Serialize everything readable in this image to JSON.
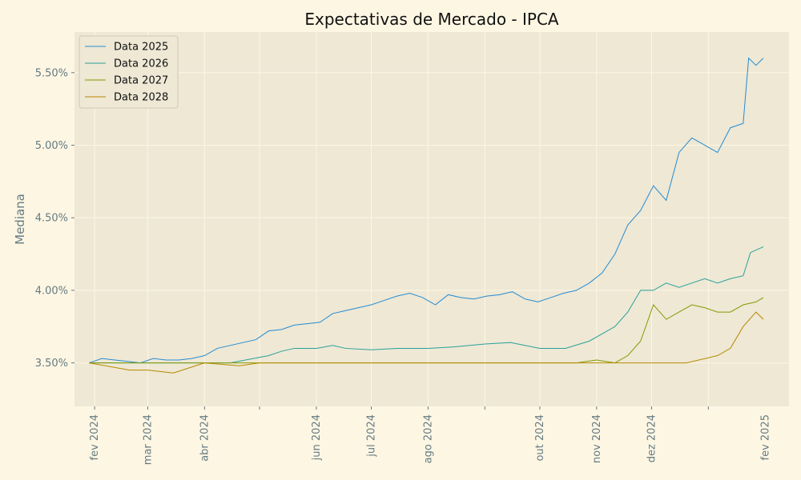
{
  "chart_data": {
    "type": "line",
    "title": "Expectativas de Mercado - IPCA",
    "xlabel": "",
    "ylabel": "Mediana",
    "xlim": [
      "2024-01-21",
      "2025-02-14"
    ],
    "ylim": [
      3.2,
      5.78
    ],
    "x_ticks": [
      "2024-02-01",
      "2024-03-01",
      "2024-04-01",
      "2024-05-01",
      "2024-06-01",
      "2024-07-01",
      "2024-08-01",
      "2024-09-01",
      "2024-10-01",
      "2024-11-01",
      "2024-12-01",
      "2025-01-01"
    ],
    "x_tick_labels": [
      "fev 2024",
      "mar 2024",
      "abr 2024",
      "jun 2024",
      "jul 2024",
      "ago 2024",
      "out 2024",
      "nov 2024",
      "dez 2024",
      "fev 2025"
    ],
    "x_tick_label_dates": [
      "2024-02-01",
      "2024-03-01",
      "2024-04-01",
      "2024-06-01",
      "2024-07-01",
      "2024-08-01",
      "2024-10-01",
      "2024-11-01",
      "2024-12-01",
      "2025-02-01"
    ],
    "y_ticks": [
      3.5,
      4.0,
      4.5,
      5.0,
      5.5
    ],
    "y_tick_labels": [
      "3.50%",
      "4.00%",
      "4.50%",
      "5.00%",
      "5.50%"
    ],
    "grid": true,
    "legend_position": "top-left",
    "colors": {
      "figure_bg": "#fdf6e3",
      "axes_bg": "#eee8d5",
      "grid": "#fdf6e3"
    },
    "series": [
      {
        "name": "Data 2025",
        "color": "#268bd2",
        "points": [
          [
            "2024-01-29",
            3.5
          ],
          [
            "2024-02-05",
            3.53
          ],
          [
            "2024-02-12",
            3.52
          ],
          [
            "2024-02-19",
            3.51
          ],
          [
            "2024-02-26",
            3.5
          ],
          [
            "2024-03-04",
            3.53
          ],
          [
            "2024-03-11",
            3.52
          ],
          [
            "2024-03-18",
            3.52
          ],
          [
            "2024-03-25",
            3.53
          ],
          [
            "2024-04-01",
            3.55
          ],
          [
            "2024-04-08",
            3.6
          ],
          [
            "2024-04-15",
            3.62
          ],
          [
            "2024-04-22",
            3.64
          ],
          [
            "2024-04-29",
            3.66
          ],
          [
            "2024-05-06",
            3.72
          ],
          [
            "2024-05-13",
            3.73
          ],
          [
            "2024-05-20",
            3.76
          ],
          [
            "2024-05-27",
            3.77
          ],
          [
            "2024-06-03",
            3.78
          ],
          [
            "2024-06-10",
            3.84
          ],
          [
            "2024-06-17",
            3.86
          ],
          [
            "2024-06-24",
            3.88
          ],
          [
            "2024-07-01",
            3.9
          ],
          [
            "2024-07-08",
            3.93
          ],
          [
            "2024-07-15",
            3.96
          ],
          [
            "2024-07-22",
            3.98
          ],
          [
            "2024-07-29",
            3.95
          ],
          [
            "2024-08-05",
            3.9
          ],
          [
            "2024-08-12",
            3.97
          ],
          [
            "2024-08-19",
            3.95
          ],
          [
            "2024-08-26",
            3.94
          ],
          [
            "2024-09-02",
            3.96
          ],
          [
            "2024-09-09",
            3.97
          ],
          [
            "2024-09-16",
            3.99
          ],
          [
            "2024-09-23",
            3.94
          ],
          [
            "2024-09-30",
            3.92
          ],
          [
            "2024-10-07",
            3.95
          ],
          [
            "2024-10-14",
            3.98
          ],
          [
            "2024-10-21",
            4.0
          ],
          [
            "2024-10-28",
            4.05
          ],
          [
            "2024-11-04",
            4.12
          ],
          [
            "2024-11-11",
            4.25
          ],
          [
            "2024-11-18",
            4.45
          ],
          [
            "2024-11-25",
            4.55
          ],
          [
            "2024-12-02",
            4.72
          ],
          [
            "2024-12-09",
            4.62
          ],
          [
            "2024-12-16",
            4.95
          ],
          [
            "2024-12-23",
            5.05
          ],
          [
            "2024-12-30",
            5.0
          ],
          [
            "2025-01-06",
            4.95
          ],
          [
            "2025-01-13",
            5.12
          ],
          [
            "2025-01-20",
            5.15
          ],
          [
            "2025-01-23",
            5.6
          ],
          [
            "2025-01-27",
            5.55
          ],
          [
            "2025-01-31",
            5.6
          ]
        ]
      },
      {
        "name": "Data 2026",
        "color": "#2aa198",
        "points": [
          [
            "2024-01-29",
            3.5
          ],
          [
            "2024-02-15",
            3.5
          ],
          [
            "2024-03-15",
            3.5
          ],
          [
            "2024-04-15",
            3.5
          ],
          [
            "2024-05-06",
            3.55
          ],
          [
            "2024-05-13",
            3.58
          ],
          [
            "2024-05-20",
            3.6
          ],
          [
            "2024-06-01",
            3.6
          ],
          [
            "2024-06-10",
            3.62
          ],
          [
            "2024-06-17",
            3.6
          ],
          [
            "2024-07-01",
            3.59
          ],
          [
            "2024-07-15",
            3.6
          ],
          [
            "2024-08-01",
            3.6
          ],
          [
            "2024-08-15",
            3.61
          ],
          [
            "2024-09-01",
            3.63
          ],
          [
            "2024-09-15",
            3.64
          ],
          [
            "2024-10-01",
            3.6
          ],
          [
            "2024-10-15",
            3.6
          ],
          [
            "2024-10-28",
            3.65
          ],
          [
            "2024-11-04",
            3.7
          ],
          [
            "2024-11-11",
            3.75
          ],
          [
            "2024-11-18",
            3.85
          ],
          [
            "2024-11-25",
            4.0
          ],
          [
            "2024-12-02",
            4.0
          ],
          [
            "2024-12-09",
            4.05
          ],
          [
            "2024-12-16",
            4.02
          ],
          [
            "2024-12-23",
            4.05
          ],
          [
            "2024-12-30",
            4.08
          ],
          [
            "2025-01-06",
            4.05
          ],
          [
            "2025-01-13",
            4.08
          ],
          [
            "2025-01-20",
            4.1
          ],
          [
            "2025-01-24",
            4.26
          ],
          [
            "2025-01-31",
            4.3
          ]
        ]
      },
      {
        "name": "Data 2027",
        "color": "#859900",
        "points": [
          [
            "2024-01-29",
            3.5
          ],
          [
            "2024-03-01",
            3.5
          ],
          [
            "2024-05-01",
            3.5
          ],
          [
            "2024-07-01",
            3.5
          ],
          [
            "2024-09-01",
            3.5
          ],
          [
            "2024-10-21",
            3.5
          ],
          [
            "2024-11-01",
            3.52
          ],
          [
            "2024-11-11",
            3.5
          ],
          [
            "2024-11-18",
            3.55
          ],
          [
            "2024-11-25",
            3.65
          ],
          [
            "2024-12-02",
            3.9
          ],
          [
            "2024-12-09",
            3.8
          ],
          [
            "2024-12-16",
            3.85
          ],
          [
            "2024-12-23",
            3.9
          ],
          [
            "2024-12-30",
            3.88
          ],
          [
            "2025-01-06",
            3.85
          ],
          [
            "2025-01-13",
            3.85
          ],
          [
            "2025-01-20",
            3.9
          ],
          [
            "2025-01-27",
            3.92
          ],
          [
            "2025-01-31",
            3.95
          ]
        ]
      },
      {
        "name": "Data 2028",
        "color": "#b58900",
        "points": [
          [
            "2024-01-29",
            3.5
          ],
          [
            "2024-02-20",
            3.45
          ],
          [
            "2024-03-01",
            3.45
          ],
          [
            "2024-03-15",
            3.43
          ],
          [
            "2024-04-01",
            3.5
          ],
          [
            "2024-04-20",
            3.48
          ],
          [
            "2024-05-01",
            3.5
          ],
          [
            "2024-07-01",
            3.5
          ],
          [
            "2024-09-01",
            3.5
          ],
          [
            "2024-11-01",
            3.5
          ],
          [
            "2024-12-01",
            3.5
          ],
          [
            "2024-12-20",
            3.5
          ],
          [
            "2025-01-06",
            3.55
          ],
          [
            "2025-01-13",
            3.6
          ],
          [
            "2025-01-20",
            3.75
          ],
          [
            "2025-01-27",
            3.85
          ],
          [
            "2025-01-31",
            3.8
          ]
        ]
      }
    ]
  }
}
